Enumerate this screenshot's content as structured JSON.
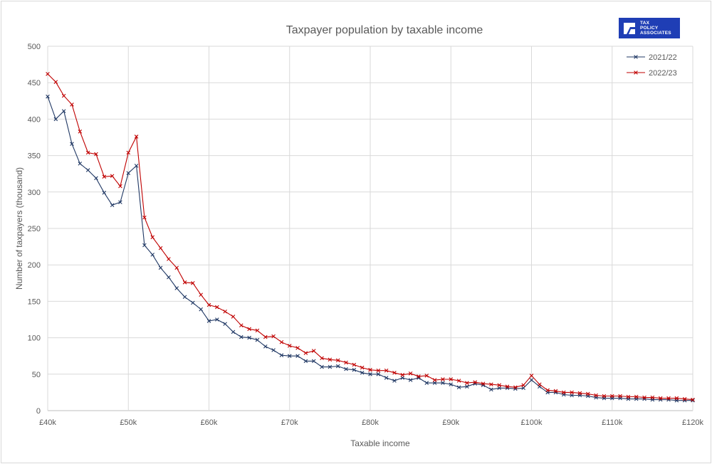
{
  "logo": {
    "line1": "TAX",
    "line2": "POLICY",
    "line3": "ASSOCIATES"
  },
  "chart_data": {
    "type": "line",
    "title": "Taxpayer population by taxable income",
    "xlabel": "Taxable income",
    "ylabel": "Number of taxpayers (thousand)",
    "xlim": [
      40,
      120
    ],
    "ylim": [
      0,
      500
    ],
    "xticks": [
      40,
      50,
      60,
      70,
      80,
      90,
      100,
      110,
      120
    ],
    "xtick_labels": [
      "£40k",
      "£50k",
      "£60k",
      "£70k",
      "£80k",
      "£90k",
      "£100k",
      "£110k",
      "£120k"
    ],
    "yticks": [
      0,
      50,
      100,
      150,
      200,
      250,
      300,
      350,
      400,
      450,
      500
    ],
    "ytick_labels": [
      "0",
      "50",
      "100",
      "150",
      "200",
      "250",
      "300",
      "350",
      "400",
      "450",
      "500"
    ],
    "grid": true,
    "legend_position": "top-right",
    "x_start": 40,
    "x_step": 1,
    "series": [
      {
        "name": "2021/22",
        "color": "#203864",
        "values": [
          431,
          400,
          411,
          366,
          339,
          330,
          319,
          299,
          282,
          286,
          326,
          336,
          227,
          214,
          196,
          183,
          168,
          156,
          148,
          139,
          123,
          125,
          119,
          108,
          101,
          100,
          97,
          88,
          83,
          76,
          75,
          75,
          68,
          68,
          60,
          60,
          61,
          57,
          56,
          52,
          50,
          50,
          45,
          41,
          45,
          42,
          45,
          38,
          38,
          38,
          36,
          32,
          33,
          37,
          35,
          29,
          31,
          31,
          30,
          31,
          42,
          33,
          25,
          25,
          22,
          21,
          21,
          20,
          18,
          17,
          17,
          17,
          16,
          16,
          16,
          15,
          15,
          15,
          14,
          14,
          14
        ]
      },
      {
        "name": "2022/23",
        "color": "#c00000",
        "values": [
          462,
          451,
          432,
          420,
          383,
          354,
          352,
          321,
          322,
          308,
          354,
          376,
          265,
          238,
          223,
          208,
          196,
          176,
          175,
          159,
          145,
          142,
          136,
          129,
          117,
          112,
          110,
          101,
          102,
          94,
          89,
          86,
          79,
          82,
          72,
          70,
          69,
          66,
          63,
          59,
          56,
          55,
          55,
          52,
          49,
          51,
          47,
          48,
          42,
          43,
          43,
          41,
          38,
          39,
          37,
          36,
          35,
          33,
          32,
          35,
          48,
          36,
          28,
          27,
          25,
          25,
          24,
          23,
          21,
          20,
          20,
          20,
          19,
          19,
          18,
          18,
          17,
          17,
          17,
          16,
          15
        ]
      }
    ]
  }
}
